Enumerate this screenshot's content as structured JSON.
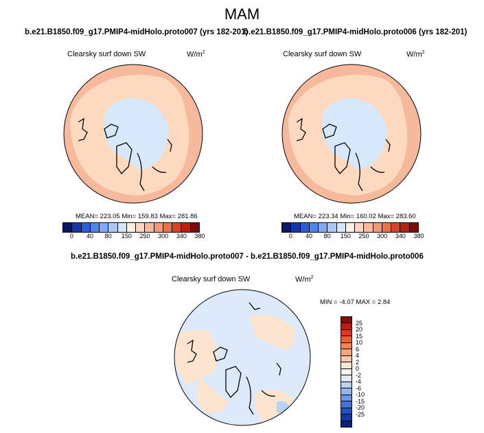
{
  "title": "MAM",
  "panels": [
    {
      "case_title": "b.e21.B1850.f09_g17.PMIP4-midHolo.proto007 (yrs 182-201)",
      "variable": "Clearsky surf down SW",
      "units_base": "W/m",
      "units_exp": "2",
      "stats": "MEAN= 223.05  Min= 159.83  Max= 281.86"
    },
    {
      "case_title": "b.e21.B1850.f09_g17.PMIP4-midHolo.proto006 (yrs 182-201)",
      "variable": "Clearsky surf down SW",
      "units_base": "W/m",
      "units_exp": "2",
      "stats": "MEAN= 223.34  Min= 160.02  Max= 283.60"
    }
  ],
  "diff_panel": {
    "title": "b.e21.B1850.f09_g17.PMIP4-midHolo.proto007 - b.e21.B1850.f09_g17.PMIP4-midHolo.proto006",
    "variable": "Clearsky surf down SW",
    "units_base": "W/m",
    "units_exp": "2",
    "stats": "MIN =  -4.07 MAX =   2.84"
  },
  "colorbar_abs": {
    "labels": [
      "0",
      "40",
      "80",
      "150",
      "250",
      "300",
      "340",
      "380"
    ],
    "colors": [
      "#08196b",
      "#1538a8",
      "#2a5ed6",
      "#4f86ee",
      "#7fa9f4",
      "#aac8f8",
      "#d4e6fb",
      "#fdeee2",
      "#fbd5bf",
      "#f7b99b",
      "#f39a75",
      "#ec704b",
      "#d84426",
      "#b81e12",
      "#7f0a08"
    ]
  },
  "colorbar_diff": {
    "labels": [
      "25",
      "20",
      "15",
      "10",
      "6",
      "4",
      "2",
      "0",
      "-2",
      "-4",
      "-6",
      "-10",
      "-15",
      "-20",
      "-25"
    ],
    "colors": [
      "#8c0a0a",
      "#c21a0e",
      "#e3361a",
      "#f25c2e",
      "#f78450",
      "#f9a679",
      "#fbc9a6",
      "#fde4cf",
      "#fdf3ea",
      "#dce9fa",
      "#b9d2f6",
      "#93b6f0",
      "#6c96e9",
      "#4473dc",
      "#2552c7",
      "#1336a8",
      "#0a1f80"
    ]
  },
  "map_colors": {
    "land_peach": "#fdd9bf",
    "outer_salmon": "#f7b99b",
    "arctic_blue": "#d8e8fb",
    "diff_blue": "#dce9fa",
    "diff_peach": "#fde4cf",
    "diff_deep_blue": "#b9d2f6"
  }
}
